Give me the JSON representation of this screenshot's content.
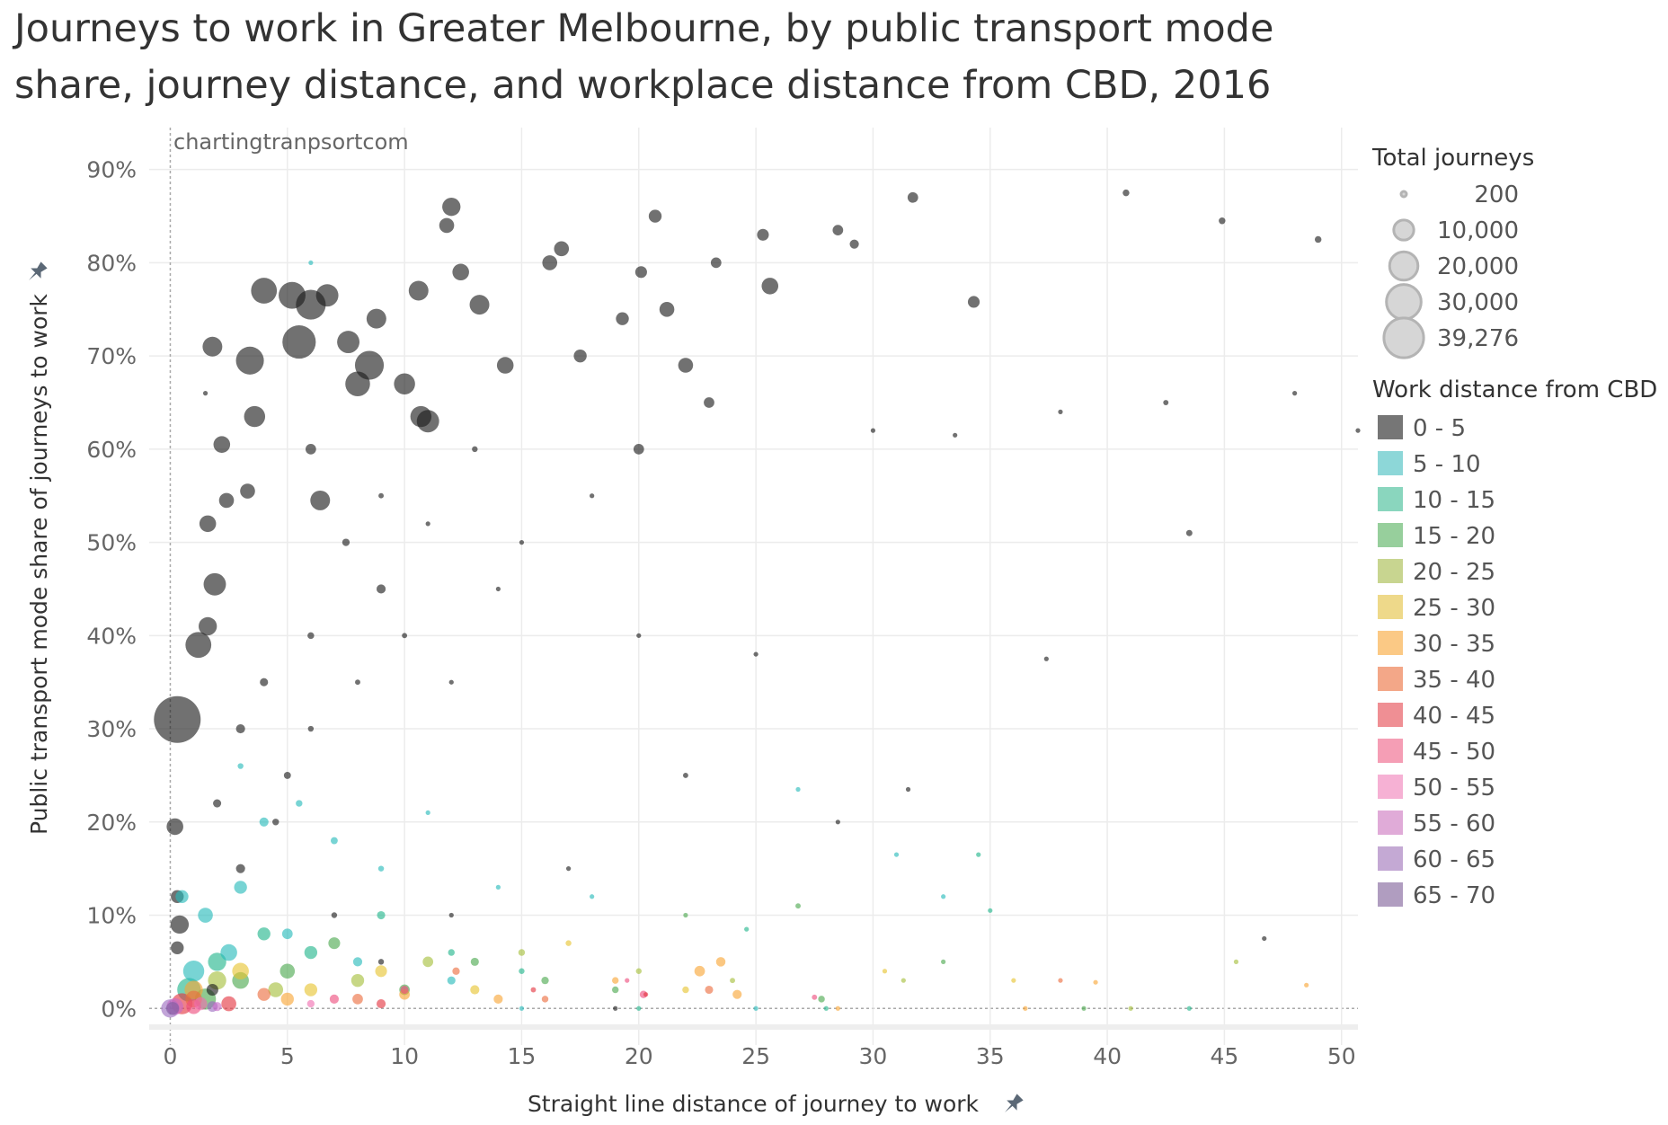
{
  "title_lines": [
    "Journeys to work in Greater Melbourne, by public transport mode",
    "share, journey distance, and workplace distance from CBD, 2016"
  ],
  "watermark": "chartingtranpsortcom",
  "chart_data": {
    "type": "scatter",
    "title": "Journeys to work in Greater Melbourne, by public transport mode share, journey distance, and workplace distance from CBD, 2016",
    "xlabel": "Straight line distance of journey to work",
    "ylabel": "Public transport mode share of journeys to work",
    "xlim": [
      -0.9,
      50.7
    ],
    "ylim": [
      -2,
      94.5
    ],
    "xticks": [
      0,
      5,
      10,
      15,
      20,
      25,
      30,
      35,
      40,
      45,
      50
    ],
    "yticks": [
      0,
      10,
      20,
      30,
      40,
      50,
      60,
      70,
      80,
      90
    ],
    "ytick_labels": [
      "0%",
      "10%",
      "20%",
      "30%",
      "40%",
      "50%",
      "60%",
      "70%",
      "80%",
      "90%"
    ],
    "grid": true,
    "size_legend": {
      "title": "Total journeys",
      "values": [
        200,
        10000,
        20000,
        30000,
        39276
      ],
      "labels": [
        "200",
        "10,000",
        "20,000",
        "30,000",
        "39,276"
      ]
    },
    "color_legend": {
      "title": "Work distance from CBD",
      "labels": [
        "0 - 5",
        "5 - 10",
        "10 - 15",
        "15 - 20",
        "20 - 25",
        "25 - 30",
        "30 - 35",
        "35 - 40",
        "40 - 45",
        "45 - 50",
        "50 - 55",
        "55 - 60",
        "60 - 65",
        "65 - 70"
      ],
      "swatch_colors": [
        "#767676",
        "#8dd7d8",
        "#8ad6be",
        "#97cf9c",
        "#c8d590",
        "#eed98a",
        "#fbc985",
        "#f3a788",
        "#ef8f94",
        "#f59eb5",
        "#f6b1d4",
        "#e0abd8",
        "#c4a9d4",
        "#b09dc0"
      ],
      "point_colors": [
        "#1a1a1a",
        "#25b9b9",
        "#20b58a",
        "#4aa84e",
        "#a5be3a",
        "#e6c32f",
        "#f9a533",
        "#ec6c3d",
        "#e3333f",
        "#ee4c7d",
        "#f06eb0",
        "#c66bc6",
        "#9b6cc0",
        "#7c5ea0"
      ]
    },
    "point_fields": [
      "distance_km",
      "pt_share_pct",
      "total_journeys",
      "work_distance_band_index"
    ],
    "points": [
      [
        0.3,
        31,
        39276,
        0
      ],
      [
        1.2,
        39,
        12000,
        0
      ],
      [
        1.9,
        45.5,
        9000,
        0
      ],
      [
        1.6,
        41,
        6000,
        0
      ],
      [
        1.6,
        52,
        5000,
        0
      ],
      [
        1.8,
        71,
        7000,
        0
      ],
      [
        0.2,
        19.5,
        5000,
        0
      ],
      [
        3.4,
        69.5,
        14000,
        0
      ],
      [
        4,
        77,
        12000,
        0
      ],
      [
        5.2,
        76.5,
        13000,
        0
      ],
      [
        6,
        75.5,
        16000,
        0
      ],
      [
        5.5,
        71.5,
        20000,
        0
      ],
      [
        6.7,
        76.5,
        9000,
        0
      ],
      [
        7.6,
        71.5,
        9000,
        0
      ],
      [
        8,
        67,
        11000,
        0
      ],
      [
        8.5,
        69,
        15000,
        0
      ],
      [
        8.8,
        74,
        7000,
        0
      ],
      [
        10.6,
        77,
        7000,
        0
      ],
      [
        10.7,
        63.5,
        8000,
        0
      ],
      [
        11,
        63,
        9000,
        0
      ],
      [
        12,
        86,
        6000,
        0
      ],
      [
        11.8,
        84,
        4000,
        0
      ],
      [
        12.4,
        79,
        5000,
        0
      ],
      [
        13.2,
        75.5,
        7000,
        0
      ],
      [
        14.3,
        69,
        5000,
        0
      ],
      [
        16.2,
        80,
        4000,
        0
      ],
      [
        16.7,
        81.5,
        4000,
        0
      ],
      [
        17.5,
        70,
        3000,
        0
      ],
      [
        19.3,
        74,
        3000,
        0
      ],
      [
        20.7,
        85,
        3000,
        0
      ],
      [
        20.1,
        79,
        2500,
        0
      ],
      [
        21.2,
        75,
        4000,
        0
      ],
      [
        22,
        69,
        4000,
        0
      ],
      [
        23.3,
        80,
        2000,
        0
      ],
      [
        25.6,
        77.5,
        5000,
        0
      ],
      [
        25.3,
        83,
        2500,
        0
      ],
      [
        28.5,
        83.5,
        2000,
        0
      ],
      [
        29.2,
        82,
        1500,
        0
      ],
      [
        31.7,
        87,
        2000,
        0
      ],
      [
        34.3,
        75.8,
        2500,
        0
      ],
      [
        40.8,
        87.5,
        800,
        0
      ],
      [
        44.9,
        84.5,
        800,
        0
      ],
      [
        49,
        82.5,
        800,
        0
      ],
      [
        43.5,
        51,
        700,
        0
      ],
      [
        46.7,
        7.5,
        400,
        0
      ],
      [
        2.2,
        60.5,
        5000,
        0
      ],
      [
        2.4,
        54.5,
        4000,
        0
      ],
      [
        3.3,
        55.5,
        4000,
        0
      ],
      [
        3.6,
        63.5,
        8000,
        0
      ],
      [
        6.4,
        54.5,
        7000,
        0
      ],
      [
        9,
        45,
        1500,
        0
      ],
      [
        7.5,
        50,
        1000,
        0
      ],
      [
        6,
        40,
        800,
        0
      ],
      [
        4,
        35,
        1200,
        0
      ],
      [
        3,
        30,
        1500,
        0
      ],
      [
        5,
        25,
        900,
        0
      ],
      [
        2,
        22,
        1200,
        0
      ],
      [
        8,
        35,
        500,
        0
      ],
      [
        10,
        40,
        500,
        0
      ],
      [
        12,
        35,
        400,
        0
      ],
      [
        15,
        50,
        400,
        0
      ],
      [
        13,
        60,
        600,
        0
      ],
      [
        18,
        55,
        400,
        0
      ],
      [
        20,
        40,
        400,
        0
      ],
      [
        22,
        25,
        500,
        0
      ],
      [
        25,
        38,
        400,
        0
      ],
      [
        28.5,
        20,
        300,
        0
      ],
      [
        31.5,
        23.5,
        300,
        0
      ],
      [
        37.4,
        37.5,
        300,
        0
      ],
      [
        0.4,
        9,
        6000,
        0
      ],
      [
        0.3,
        12,
        3000,
        0
      ],
      [
        0.3,
        6.5,
        3000,
        0
      ],
      [
        1.8,
        2,
        2500,
        0
      ],
      [
        3,
        15,
        1500,
        0
      ],
      [
        4.5,
        20,
        800,
        0
      ],
      [
        6,
        30,
        600,
        0
      ],
      [
        7,
        10,
        600,
        0
      ],
      [
        9,
        5,
        600,
        0
      ],
      [
        12,
        10,
        400,
        0
      ],
      [
        17,
        15,
        400,
        0
      ],
      [
        19,
        0,
        300,
        0
      ],
      [
        10,
        67,
        8000,
        0
      ],
      [
        1.5,
        66,
        300,
        0
      ],
      [
        6,
        60,
        2000,
        0
      ],
      [
        9,
        55,
        500,
        0
      ],
      [
        11,
        52,
        300,
        0
      ],
      [
        14,
        45,
        300,
        0
      ],
      [
        20,
        60,
        2000,
        0
      ],
      [
        23,
        65,
        2000,
        0
      ],
      [
        30,
        62,
        300,
        0
      ],
      [
        33.5,
        61.5,
        300,
        0
      ],
      [
        38,
        64,
        300,
        0
      ],
      [
        42.5,
        65,
        500,
        0
      ],
      [
        48,
        66,
        300,
        0
      ],
      [
        50.7,
        62,
        300,
        0
      ],
      [
        0.5,
        12,
        3000,
        1
      ],
      [
        1.5,
        10,
        4000,
        1
      ],
      [
        3,
        13,
        3000,
        1
      ],
      [
        4,
        20,
        1500,
        1
      ],
      [
        5.5,
        22,
        800,
        1
      ],
      [
        7,
        18,
        900,
        1
      ],
      [
        9,
        15,
        600,
        1
      ],
      [
        11,
        21,
        400,
        1
      ],
      [
        14,
        13,
        400,
        1
      ],
      [
        18,
        12,
        300,
        1
      ],
      [
        26.8,
        23.5,
        200,
        1
      ],
      [
        31,
        16.5,
        300,
        1
      ],
      [
        2.5,
        6,
        5000,
        1
      ],
      [
        5,
        8,
        2000,
        1
      ],
      [
        8,
        5,
        1500,
        1
      ],
      [
        12,
        3,
        1200,
        1
      ],
      [
        1,
        4,
        8000,
        1
      ],
      [
        3,
        26,
        600,
        1
      ],
      [
        6,
        80,
        300,
        1
      ],
      [
        15,
        0,
        200,
        1
      ],
      [
        25,
        0,
        200,
        1
      ],
      [
        33,
        12,
        200,
        1
      ],
      [
        0.8,
        2,
        10000,
        2
      ],
      [
        2,
        5,
        6000,
        2
      ],
      [
        4,
        8,
        3000,
        2
      ],
      [
        6,
        6,
        3000,
        2
      ],
      [
        9,
        10,
        1200,
        2
      ],
      [
        12,
        6,
        800,
        2
      ],
      [
        15,
        4,
        600,
        2
      ],
      [
        20,
        0,
        300,
        2
      ],
      [
        24.6,
        8.5,
        400,
        2
      ],
      [
        34.5,
        16.5,
        400,
        2
      ],
      [
        35,
        10.5,
        200,
        2
      ],
      [
        28,
        0,
        200,
        2
      ],
      [
        43.5,
        0,
        200,
        2
      ],
      [
        1.5,
        1,
        8000,
        3
      ],
      [
        3,
        3,
        5000,
        3
      ],
      [
        5,
        4,
        4000,
        3
      ],
      [
        7,
        7,
        2500,
        3
      ],
      [
        10,
        2,
        2000,
        3
      ],
      [
        13,
        5,
        1200,
        3
      ],
      [
        16,
        3,
        1000,
        3
      ],
      [
        19,
        2,
        800,
        3
      ],
      [
        22,
        10,
        300,
        3
      ],
      [
        26.8,
        11,
        500,
        3
      ],
      [
        27.8,
        1,
        800,
        3
      ],
      [
        33,
        5,
        300,
        3
      ],
      [
        39,
        0,
        200,
        3
      ],
      [
        2,
        3,
        6000,
        4
      ],
      [
        4.5,
        2,
        4000,
        4
      ],
      [
        8,
        3,
        3000,
        4
      ],
      [
        11,
        5,
        2000,
        4
      ],
      [
        15,
        6,
        800,
        4
      ],
      [
        20,
        4,
        600,
        4
      ],
      [
        24,
        3,
        500,
        4
      ],
      [
        31.3,
        3,
        400,
        4
      ],
      [
        41,
        0,
        200,
        4
      ],
      [
        45.5,
        5,
        200,
        4
      ],
      [
        3,
        4,
        5000,
        5
      ],
      [
        6,
        2,
        3000,
        5
      ],
      [
        9,
        4,
        2500,
        5
      ],
      [
        13,
        2,
        1500,
        5
      ],
      [
        17,
        7,
        600,
        5
      ],
      [
        22,
        2,
        800,
        5
      ],
      [
        30.5,
        4,
        400,
        5
      ],
      [
        36,
        3,
        300,
        5
      ],
      [
        1,
        2,
        6000,
        6
      ],
      [
        5,
        1,
        3000,
        6
      ],
      [
        10,
        1.5,
        2000,
        6
      ],
      [
        14,
        1,
        1500,
        6
      ],
      [
        19,
        3,
        800,
        6
      ],
      [
        22.6,
        4,
        2000,
        6
      ],
      [
        24.2,
        1.5,
        1500,
        6
      ],
      [
        23.5,
        5,
        1600,
        6
      ],
      [
        28.5,
        0,
        300,
        6
      ],
      [
        36.5,
        0,
        400,
        6
      ],
      [
        39.5,
        2.8,
        300,
        6
      ],
      [
        48.5,
        2.5,
        200,
        6
      ],
      [
        1,
        1,
        5000,
        7
      ],
      [
        4,
        1.5,
        3000,
        7
      ],
      [
        8,
        1,
        2000,
        7
      ],
      [
        12.2,
        4,
        1000,
        7
      ],
      [
        16,
        1,
        800,
        7
      ],
      [
        23,
        2,
        1200,
        7
      ],
      [
        38,
        3,
        200,
        7
      ],
      [
        0.5,
        0.5,
        8000,
        8
      ],
      [
        2.5,
        0.5,
        4000,
        8
      ],
      [
        9,
        0.5,
        1500,
        8
      ],
      [
        15.5,
        2,
        500,
        8
      ],
      [
        20.3,
        1.5,
        400,
        8
      ],
      [
        1,
        0.2,
        4000,
        9
      ],
      [
        7,
        1,
        1500,
        9
      ],
      [
        10,
        2,
        1200,
        9
      ],
      [
        20.2,
        1.5,
        1000,
        9
      ],
      [
        27.5,
        1.2,
        500,
        9
      ],
      [
        19.5,
        3,
        300,
        9
      ],
      [
        1.3,
        0.5,
        3000,
        10
      ],
      [
        6,
        0.5,
        1000,
        10
      ],
      [
        0.2,
        0.2,
        5000,
        11
      ],
      [
        2,
        0.2,
        1500,
        11
      ],
      [
        0,
        0,
        6000,
        12
      ],
      [
        1.8,
        0.2,
        2000,
        12
      ],
      [
        0.1,
        0,
        3000,
        13
      ]
    ]
  }
}
